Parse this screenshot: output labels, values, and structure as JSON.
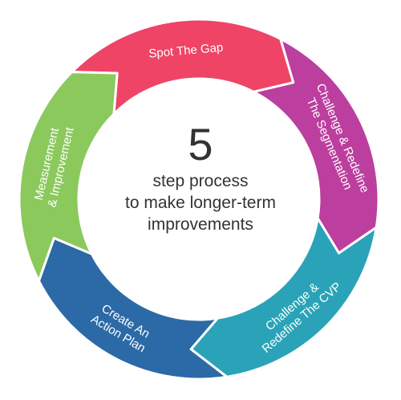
{
  "center": {
    "number": "5",
    "line1": "step process",
    "line2": "to make longer-term",
    "line3": "improvements"
  },
  "segments": [
    {
      "lines": [
        "Spot The Gap"
      ],
      "color": "#ef4466"
    },
    {
      "lines": [
        "Challenge & Redefine",
        "The Segmentation"
      ],
      "color": "#bc3e9e"
    },
    {
      "lines": [
        "Challenge &",
        "Redefine The CVP"
      ],
      "color": "#2aa3b8"
    },
    {
      "lines": [
        "Create An",
        "Action Plan"
      ],
      "color": "#2b6aa6"
    },
    {
      "lines": [
        "Measurement",
        "& Improvement"
      ],
      "color": "#8bc95d"
    }
  ]
}
